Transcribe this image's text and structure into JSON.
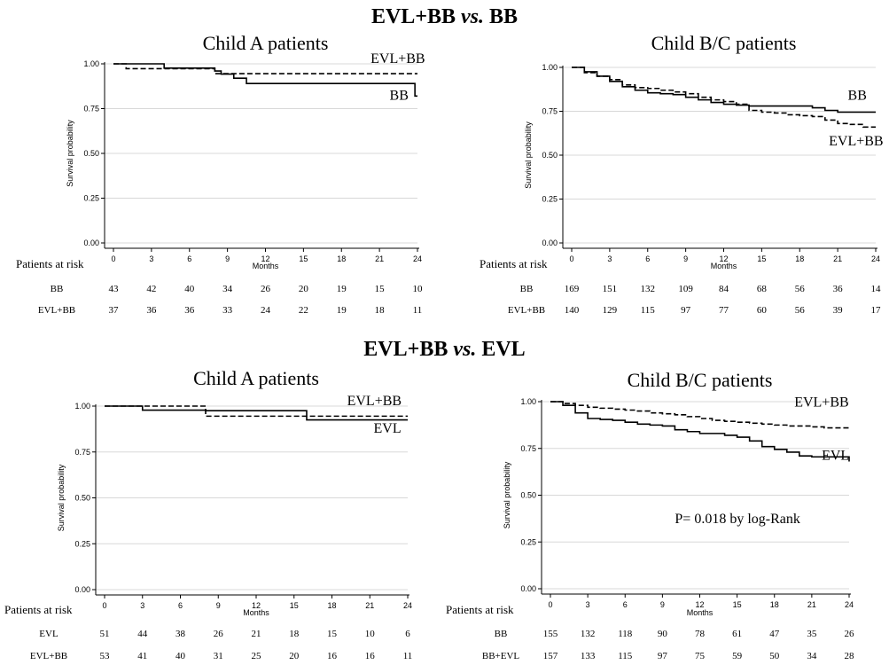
{
  "titles": {
    "top": {
      "left": "EVL+BB",
      "vs": "vs.",
      "right": "BB"
    },
    "bottom": {
      "left": "EVL+BB",
      "vs": "vs.",
      "right": "EVL"
    }
  },
  "chart_data": [
    {
      "type": "line",
      "title": "Child A patients",
      "xlabel": "Months",
      "ylabel": "Survival probability",
      "xticks": [
        0,
        3,
        6,
        9,
        12,
        15,
        18,
        21,
        24
      ],
      "yticks": [
        "0.00",
        "0.25",
        "0.50",
        "0.75",
        "1.00"
      ],
      "xlim": [
        0,
        24
      ],
      "ylim": [
        0,
        1
      ],
      "grid": true,
      "series": [
        {
          "name": "BB",
          "style": "solid",
          "x": [
            0,
            4,
            4,
            8,
            8,
            8.5,
            8.5,
            9.5,
            9.5,
            10.5,
            10.5,
            23.8,
            23.8,
            24
          ],
          "y": [
            1.0,
            1.0,
            0.976,
            0.976,
            0.96,
            0.96,
            0.943,
            0.943,
            0.92,
            0.92,
            0.89,
            0.89,
            0.82,
            0.82
          ]
        },
        {
          "name": "EVL+BB",
          "style": "dashed",
          "x": [
            0,
            1,
            1,
            8,
            8,
            9,
            9,
            24
          ],
          "y": [
            1.0,
            1.0,
            0.973,
            0.973,
            0.945,
            0.945,
            0.945,
            0.945
          ]
        }
      ],
      "labels": [
        {
          "text": "EVL+BB",
          "x": 20.3,
          "y": 1.005
        },
        {
          "text": "BB",
          "x": 21.8,
          "y": 0.8
        }
      ],
      "risk_table": {
        "header": "Patients at risk",
        "rows": [
          {
            "label": "BB",
            "values": [
              43,
              42,
              40,
              34,
              26,
              20,
              19,
              15,
              10
            ]
          },
          {
            "label": "EVL+BB",
            "values": [
              37,
              36,
              36,
              33,
              24,
              22,
              19,
              18,
              11
            ]
          }
        ]
      }
    },
    {
      "type": "line",
      "title": "Child B/C patients",
      "xlabel": "Months",
      "ylabel": "Survival probability",
      "xticks": [
        0,
        3,
        6,
        9,
        12,
        15,
        18,
        21,
        24
      ],
      "yticks": [
        "0.00",
        "0.25",
        "0.50",
        "0.75",
        "1.00"
      ],
      "xlim": [
        0,
        24
      ],
      "ylim": [
        0,
        1
      ],
      "grid": true,
      "series": [
        {
          "name": "BB",
          "style": "solid",
          "x": [
            0,
            1,
            2,
            3,
            4,
            5,
            6,
            7,
            8,
            9,
            10,
            11,
            12,
            13,
            14,
            15,
            16,
            17,
            18,
            19,
            20,
            21,
            22,
            23,
            24
          ],
          "y": [
            1.0,
            0.975,
            0.95,
            0.92,
            0.89,
            0.87,
            0.855,
            0.85,
            0.845,
            0.83,
            0.815,
            0.8,
            0.79,
            0.785,
            0.78,
            0.78,
            0.78,
            0.78,
            0.78,
            0.77,
            0.755,
            0.745,
            0.745,
            0.745,
            0.745
          ]
        },
        {
          "name": "EVL+BB",
          "style": "dashed",
          "x": [
            0,
            1,
            2,
            3,
            4,
            5,
            6,
            7,
            8,
            9,
            10,
            11,
            12,
            13,
            14,
            15,
            16,
            17,
            18,
            19,
            20,
            21,
            22,
            23,
            24
          ],
          "y": [
            1.0,
            0.97,
            0.95,
            0.93,
            0.9,
            0.885,
            0.88,
            0.87,
            0.86,
            0.85,
            0.83,
            0.815,
            0.805,
            0.79,
            0.755,
            0.745,
            0.74,
            0.73,
            0.725,
            0.72,
            0.7,
            0.68,
            0.675,
            0.66,
            0.66
          ]
        }
      ],
      "labels": [
        {
          "text": "BB",
          "x": 21.8,
          "y": 0.815
        },
        {
          "text": "EVL+BB",
          "x": 20.3,
          "y": 0.555
        }
      ],
      "risk_table": {
        "header": "Patients at risk",
        "rows": [
          {
            "label": "BB",
            "values": [
              169,
              151,
              132,
              109,
              84,
              68,
              56,
              36,
              14
            ]
          },
          {
            "label": "EVL+BB",
            "values": [
              140,
              129,
              115,
              97,
              77,
              60,
              56,
              39,
              17
            ]
          }
        ]
      }
    },
    {
      "type": "line",
      "title": "Child A patients",
      "xlabel": "Months",
      "ylabel": "Survival probability",
      "xticks": [
        0,
        3,
        6,
        9,
        12,
        15,
        18,
        21,
        24
      ],
      "yticks": [
        "0.00",
        "0.25",
        "0.50",
        "0.75",
        "1.00"
      ],
      "xlim": [
        0,
        24
      ],
      "ylim": [
        0,
        1
      ],
      "grid": true,
      "series": [
        {
          "name": "EVL",
          "style": "solid",
          "x": [
            0,
            3,
            3,
            8,
            8,
            16,
            16,
            24
          ],
          "y": [
            1.0,
            1.0,
            0.978,
            0.978,
            0.975,
            0.975,
            0.925,
            0.925
          ]
        },
        {
          "name": "EVL+BB",
          "style": "dashed",
          "x": [
            0,
            3,
            3,
            8,
            8,
            24
          ],
          "y": [
            1.0,
            1.0,
            1.0,
            1.0,
            0.945,
            0.945
          ]
        }
      ],
      "labels": [
        {
          "text": "EVL+BB",
          "x": 19.2,
          "y": 1.005
        },
        {
          "text": "EVL",
          "x": 21.3,
          "y": 0.855
        }
      ],
      "risk_table": {
        "header": "Patients at risk",
        "rows": [
          {
            "label": "EVL",
            "values": [
              51,
              44,
              38,
              26,
              21,
              18,
              15,
              10,
              6
            ]
          },
          {
            "label": "EVL+BB",
            "values": [
              53,
              41,
              40,
              31,
              25,
              20,
              16,
              16,
              11
            ]
          }
        ]
      }
    },
    {
      "type": "line",
      "title": "Child B/C patients",
      "xlabel": "Months",
      "ylabel": "Survival probability",
      "xticks": [
        0,
        3,
        6,
        9,
        12,
        15,
        18,
        21,
        24
      ],
      "yticks": [
        "0.00",
        "0.25",
        "0.50",
        "0.75",
        "1.00"
      ],
      "xlim": [
        0,
        24
      ],
      "ylim": [
        0,
        1
      ],
      "grid": true,
      "series": [
        {
          "name": "EVL",
          "style": "solid",
          "x": [
            0,
            1,
            2,
            3,
            4,
            5,
            6,
            7,
            8,
            9,
            10,
            11,
            12,
            13,
            14,
            15,
            16,
            17,
            18,
            19,
            20,
            21,
            22,
            23,
            24
          ],
          "y": [
            1.0,
            0.98,
            0.94,
            0.91,
            0.905,
            0.9,
            0.89,
            0.88,
            0.875,
            0.87,
            0.85,
            0.84,
            0.83,
            0.83,
            0.82,
            0.81,
            0.79,
            0.76,
            0.745,
            0.73,
            0.71,
            0.705,
            0.705,
            0.705,
            0.68
          ]
        },
        {
          "name": "EVL+BB",
          "style": "dashed",
          "x": [
            0,
            1,
            2,
            3,
            4,
            5,
            6,
            7,
            8,
            9,
            10,
            11,
            12,
            13,
            14,
            15,
            16,
            17,
            18,
            19,
            20,
            21,
            22,
            23,
            24
          ],
          "y": [
            1.0,
            0.99,
            0.98,
            0.97,
            0.965,
            0.96,
            0.955,
            0.95,
            0.94,
            0.935,
            0.93,
            0.92,
            0.91,
            0.9,
            0.895,
            0.89,
            0.885,
            0.88,
            0.875,
            0.87,
            0.87,
            0.865,
            0.86,
            0.86,
            0.86
          ]
        }
      ],
      "labels": [
        {
          "text": "EVL+BB",
          "x": 19.6,
          "y": 0.975
        },
        {
          "text": "EVL",
          "x": 21.8,
          "y": 0.69
        }
      ],
      "annotation": {
        "text": "P= 0.018 by log-Rank",
        "x": 10,
        "y": 0.35
      },
      "risk_table": {
        "header": "Patients at risk",
        "rows": [
          {
            "label": "BB",
            "values": [
              155,
              132,
              118,
              90,
              78,
              61,
              47,
              35,
              26
            ]
          },
          {
            "label": "BB+EVL",
            "values": [
              157,
              133,
              115,
              97,
              75,
              59,
              50,
              34,
              28
            ]
          }
        ]
      }
    }
  ]
}
